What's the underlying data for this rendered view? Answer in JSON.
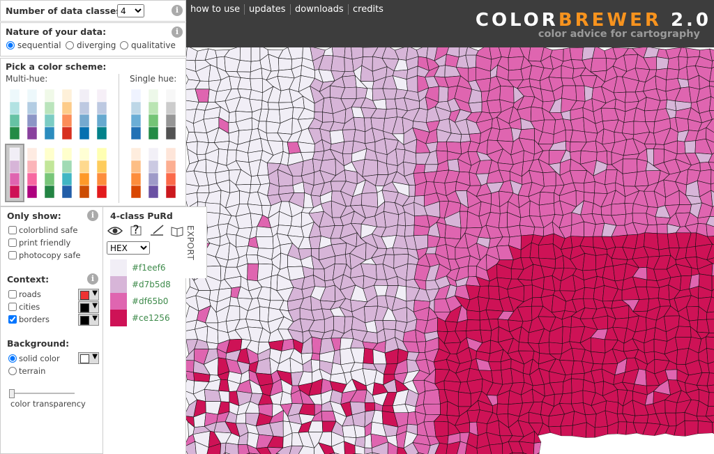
{
  "header": {
    "nav": [
      "how to use",
      "updates",
      "downloads",
      "credits"
    ],
    "logo": {
      "color": "COLOR",
      "brewer": "BREWER",
      "version": "2.0"
    },
    "tagline": "color advice for cartography"
  },
  "sidebar": {
    "info_icon": "i",
    "classes": {
      "label": "Number of data classes:",
      "value": "4"
    },
    "nature": {
      "label": "Nature of your data:",
      "options": [
        "sequential",
        "diverging",
        "qualitative"
      ],
      "selected": 0
    },
    "scheme": {
      "label": "Pick a color scheme:",
      "multi_hue_label": "Multi-hue:",
      "single_hue_label": "Single hue:",
      "selected": 6,
      "multi_hue": [
        [
          "#edf8fb",
          "#b2e2e2",
          "#66c2a4",
          "#238b45"
        ],
        [
          "#edf8fb",
          "#b3cde3",
          "#8c96c6",
          "#88419d"
        ],
        [
          "#f0f9e8",
          "#bae4bc",
          "#7bccc4",
          "#2b8cbe"
        ],
        [
          "#fef0d9",
          "#fdcc8a",
          "#fc8d59",
          "#d7301f"
        ],
        [
          "#f1eef6",
          "#bdc9e1",
          "#74a9cf",
          "#0570b0"
        ],
        [
          "#f6eff7",
          "#bdc9e1",
          "#67a9cf",
          "#02818a"
        ],
        [
          "#f1eef6",
          "#d7b5d8",
          "#df65b0",
          "#ce1256"
        ],
        [
          "#feebe2",
          "#fbb4b9",
          "#f768a1",
          "#ae017e"
        ],
        [
          "#ffffcc",
          "#c2e699",
          "#78c679",
          "#238443"
        ],
        [
          "#ffffcc",
          "#a1dab4",
          "#41b6c4",
          "#225ea8"
        ],
        [
          "#ffffd4",
          "#fed98e",
          "#fe9929",
          "#cc4c02"
        ],
        [
          "#ffffb2",
          "#fecc5c",
          "#fd8d3c",
          "#e31a1c"
        ]
      ],
      "single_hue": [
        [
          "#eff3ff",
          "#bdd7e7",
          "#6baed6",
          "#2171b5"
        ],
        [
          "#edf8e9",
          "#bae4b3",
          "#74c476",
          "#238b45"
        ],
        [
          "#f7f7f7",
          "#cccccc",
          "#969696",
          "#525252"
        ],
        [
          "#feedde",
          "#fdbe85",
          "#fd8d3c",
          "#d94701"
        ],
        [
          "#f2f0f7",
          "#cbc9e2",
          "#9e9ac8",
          "#6a51a3"
        ],
        [
          "#fee5d9",
          "#fcae91",
          "#fb6a4a",
          "#cb181d"
        ]
      ]
    },
    "filters": {
      "label": "Only show:",
      "options": [
        "colorblind safe",
        "print friendly",
        "photocopy safe"
      ]
    },
    "context": {
      "label": "Context:",
      "options": [
        {
          "name": "roads",
          "checked": false,
          "color": "#ee3333"
        },
        {
          "name": "cities",
          "checked": false,
          "color": "#000000"
        },
        {
          "name": "borders",
          "checked": true,
          "color": "#000000"
        }
      ]
    },
    "background": {
      "label": "Background:",
      "options": [
        "solid color",
        "terrain"
      ],
      "selected": 0,
      "color": "#ffffff",
      "slider_label": "color transparency"
    }
  },
  "palette": {
    "title": "4-class PuRd",
    "help_icon": "?",
    "format": "HEX",
    "export": "EXPORT",
    "colors": [
      "#f1eef6",
      "#d7b5d8",
      "#df65b0",
      "#ce1256"
    ]
  }
}
